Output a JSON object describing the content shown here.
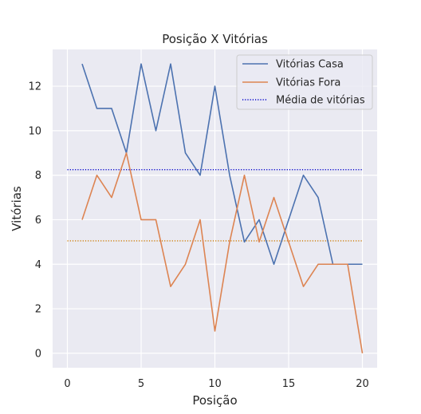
{
  "chart_data": {
    "type": "line",
    "title": "Posição X Vitórias",
    "xlabel": "Posição",
    "ylabel": "Vitórias",
    "xlim": [
      -1,
      21
    ],
    "ylim": [
      -0.65,
      13.65
    ],
    "xticks": [
      0,
      5,
      10,
      15,
      20
    ],
    "yticks": [
      0,
      2,
      4,
      6,
      8,
      10,
      12
    ],
    "grid": true,
    "legend_position": "top-right",
    "x": [
      1,
      2,
      3,
      4,
      5,
      6,
      7,
      8,
      9,
      10,
      11,
      12,
      13,
      14,
      15,
      16,
      17,
      18,
      19,
      20
    ],
    "series": [
      {
        "name": "Vitórias Casa",
        "color": "#4c72b0",
        "style": "solid",
        "values": [
          13,
          11,
          11,
          9,
          13,
          10,
          13,
          9,
          8,
          12,
          8,
          5,
          6,
          4,
          6,
          8,
          7,
          4,
          4,
          4
        ]
      },
      {
        "name": "Vitórias Fora",
        "color": "#dd8452",
        "style": "solid",
        "values": [
          6,
          8,
          7,
          9,
          6,
          6,
          3,
          4,
          6,
          1,
          5,
          8,
          5,
          7,
          5,
          3,
          4,
          4,
          4,
          0
        ]
      }
    ],
    "reference_lines": [
      {
        "name": "Média de vitórias",
        "color": "#0000cc",
        "style": "dotted",
        "x_range": [
          0,
          20
        ],
        "y": 8.25
      },
      {
        "color": "#cc7a00",
        "style": "dotted",
        "x_range": [
          0,
          20
        ],
        "y": 5.05
      }
    ]
  }
}
